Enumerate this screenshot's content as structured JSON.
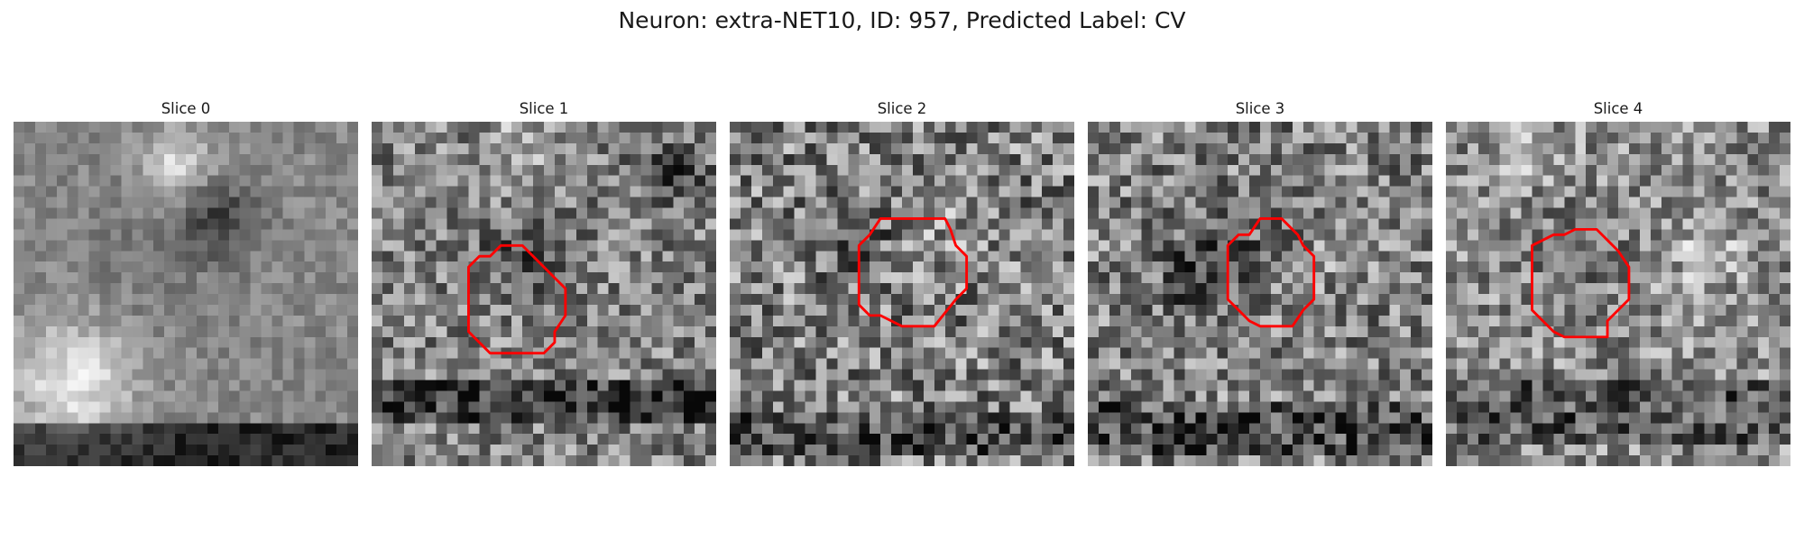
{
  "figure": {
    "title": "Neuron: extra-NET10, ID: 957, Predicted Label: CV"
  },
  "panels": [
    {
      "title": "Slice 0",
      "seed": 11,
      "roi": false,
      "outline_color": "#ff0000"
    },
    {
      "title": "Slice 1",
      "seed": 27,
      "roi": true,
      "outline_color": "#ff0000"
    },
    {
      "title": "Slice 2",
      "seed": 43,
      "roi": true,
      "outline_color": "#ff0000"
    },
    {
      "title": "Slice 3",
      "seed": 59,
      "roi": true,
      "outline_color": "#ff0000"
    },
    {
      "title": "Slice 4",
      "seed": 71,
      "roi": true,
      "outline_color": "#ff0000"
    }
  ]
}
